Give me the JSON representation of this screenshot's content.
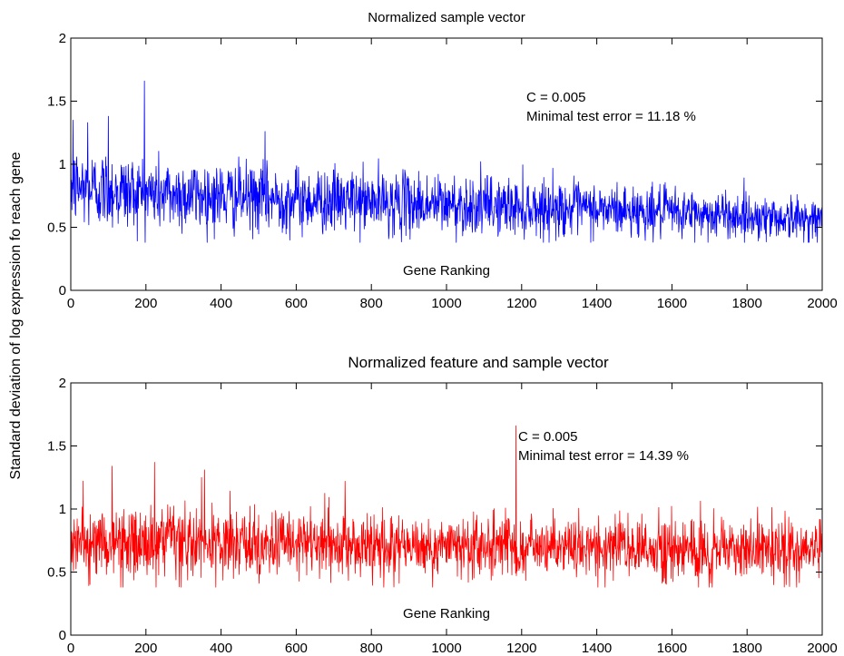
{
  "figure": {
    "ylabel": "Standard deviation of log expression fo reach gene"
  },
  "chart_data": [
    {
      "type": "line",
      "title": "Normalized sample vector",
      "xlabel": "Gene Ranking",
      "ylabel": "Standard deviation of log expression fo reach gene",
      "xlim": [
        0,
        2000
      ],
      "ylim": [
        0,
        2
      ],
      "x_ticks": [
        "0",
        "200",
        "400",
        "600",
        "800",
        "1000",
        "1200",
        "1400",
        "1600",
        "1800",
        "2000"
      ],
      "y_ticks": [
        "0",
        "0.5",
        "1",
        "1.5",
        "2"
      ],
      "grid": false,
      "color": "#0000ff",
      "annotations": [
        "C = 0.005",
        "Minimal test error = 11.18 %"
      ],
      "series": [
        {
          "n_points": 2000,
          "trend": {
            "x": [
              0,
              200,
              500,
              1000,
              1500,
              2000
            ],
            "y": [
              0.82,
              0.77,
              0.73,
              0.68,
              0.63,
              0.56
            ]
          },
          "noise_sd": {
            "x": [
              0,
              500,
              1000,
              2000
            ],
            "y": [
              0.16,
              0.13,
              0.12,
              0.08
            ]
          },
          "spikes": [
            {
              "x": 196,
              "y": 1.66
            },
            {
              "x": 6,
              "y": 1.35
            },
            {
              "x": 45,
              "y": 1.33
            },
            {
              "x": 100,
              "y": 1.38
            },
            {
              "x": 517,
              "y": 1.26
            }
          ]
        }
      ]
    },
    {
      "type": "line",
      "title": "Normalized feature and sample vector",
      "xlabel": "Gene Ranking",
      "ylabel": "Standard deviation of log expression fo reach gene",
      "xlim": [
        0,
        2000
      ],
      "ylim": [
        0,
        2
      ],
      "x_ticks": [
        "0",
        "200",
        "400",
        "600",
        "800",
        "1000",
        "1200",
        "1400",
        "1600",
        "1800",
        "2000"
      ],
      "y_ticks": [
        "0",
        "0.5",
        "1",
        "1.5",
        "2"
      ],
      "grid": false,
      "color": "#ff0000",
      "annotations": [
        "C = 0.005",
        "Minimal test error = 14.39 %"
      ],
      "series": [
        {
          "n_points": 2000,
          "trend": {
            "x": [
              0,
              1000,
              2000
            ],
            "y": [
              0.73,
              0.7,
              0.67
            ]
          },
          "noise_sd": {
            "x": [
              0,
              2000
            ],
            "y": [
              0.14,
              0.12
            ]
          },
          "spikes": [
            {
              "x": 1185,
              "y": 1.66
            },
            {
              "x": 223,
              "y": 1.37
            },
            {
              "x": 110,
              "y": 1.34
            },
            {
              "x": 356,
              "y": 1.31
            },
            {
              "x": 730,
              "y": 1.22
            }
          ]
        }
      ]
    }
  ]
}
